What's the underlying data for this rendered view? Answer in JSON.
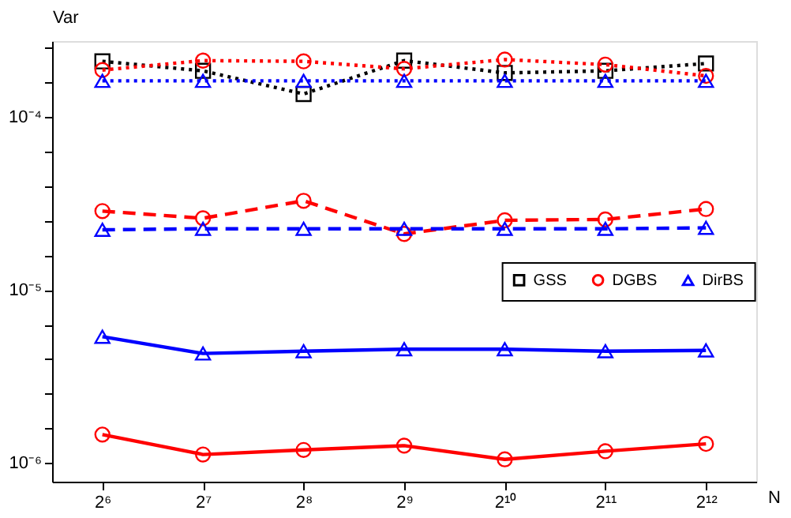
{
  "chart_data": {
    "type": "line",
    "xlabel": "N",
    "ylabel": "Var",
    "categories": [
      "2⁶",
      "2⁷",
      "2⁸",
      "2⁹",
      "2¹⁰",
      "2¹¹",
      "2¹²"
    ],
    "series": [
      {
        "name": "GSS",
        "color": "#000000",
        "marker": "square",
        "line_style": "dotted",
        "values": [
          0.00021,
          0.000185,
          0.000136,
          0.000212,
          0.00018,
          0.000185,
          0.000204
        ]
      },
      {
        "name": "DGBS",
        "color": "#ff0000",
        "marker": "circle",
        "line_style": "dotted",
        "values": [
          0.000187,
          0.000212,
          0.00021,
          0.00019,
          0.000215,
          0.000201,
          0.000173
        ]
      },
      {
        "name": "DirBS",
        "color": "#0000ff",
        "marker": "triangle",
        "line_style": "dotted",
        "values": [
          0.000162,
          0.000162,
          0.000162,
          0.000162,
          0.000162,
          0.000162,
          0.000162
        ]
      },
      {
        "color": "#ff0000",
        "marker": "circle",
        "line_style": "dashed",
        "values": [
          2.86e-05,
          2.6e-05,
          3.28e-05,
          2.11e-05,
          2.53e-05,
          2.56e-05,
          2.94e-05
        ]
      },
      {
        "color": "#0000ff",
        "marker": "triangle",
        "line_style": "dashed",
        "values": [
          2.23e-05,
          2.26e-05,
          2.26e-05,
          2.26e-05,
          2.26e-05,
          2.26e-05,
          2.29e-05
        ]
      },
      {
        "color": "#0000ff",
        "marker": "triangle",
        "line_style": "solid",
        "values": [
          5.37e-06,
          4.3e-06,
          4.43e-06,
          4.55e-06,
          4.55e-06,
          4.43e-06,
          4.48e-06
        ]
      },
      {
        "color": "#ff0000",
        "marker": "circle",
        "line_style": "solid",
        "values": [
          1.46e-06,
          1.12e-06,
          1.19e-06,
          1.26e-06,
          1.05e-06,
          1.17e-06,
          1.29e-06
        ]
      }
    ],
    "log": "y",
    "ylim": [
      7.8e-07,
      0.000275
    ],
    "yticks": [
      {
        "value": 1e-06,
        "label": "10⁻⁶"
      },
      {
        "value": 1.585e-06,
        "label": null
      },
      {
        "value": 2.512e-06,
        "label": null
      },
      {
        "value": 3.981e-06,
        "label": null
      },
      {
        "value": 6.31e-06,
        "label": null
      },
      {
        "value": 1e-05,
        "label": "10⁻⁵"
      },
      {
        "value": 1.585e-05,
        "label": null
      },
      {
        "value": 2.512e-05,
        "label": null
      },
      {
        "value": 3.981e-05,
        "label": null
      },
      {
        "value": 6.31e-05,
        "label": null
      },
      {
        "value": 0.0001,
        "label": "10⁻⁴"
      },
      {
        "value": 0.0001585,
        "label": null
      },
      {
        "value": 0.0002512,
        "label": null
      }
    ],
    "grid": false,
    "legend": "right"
  }
}
